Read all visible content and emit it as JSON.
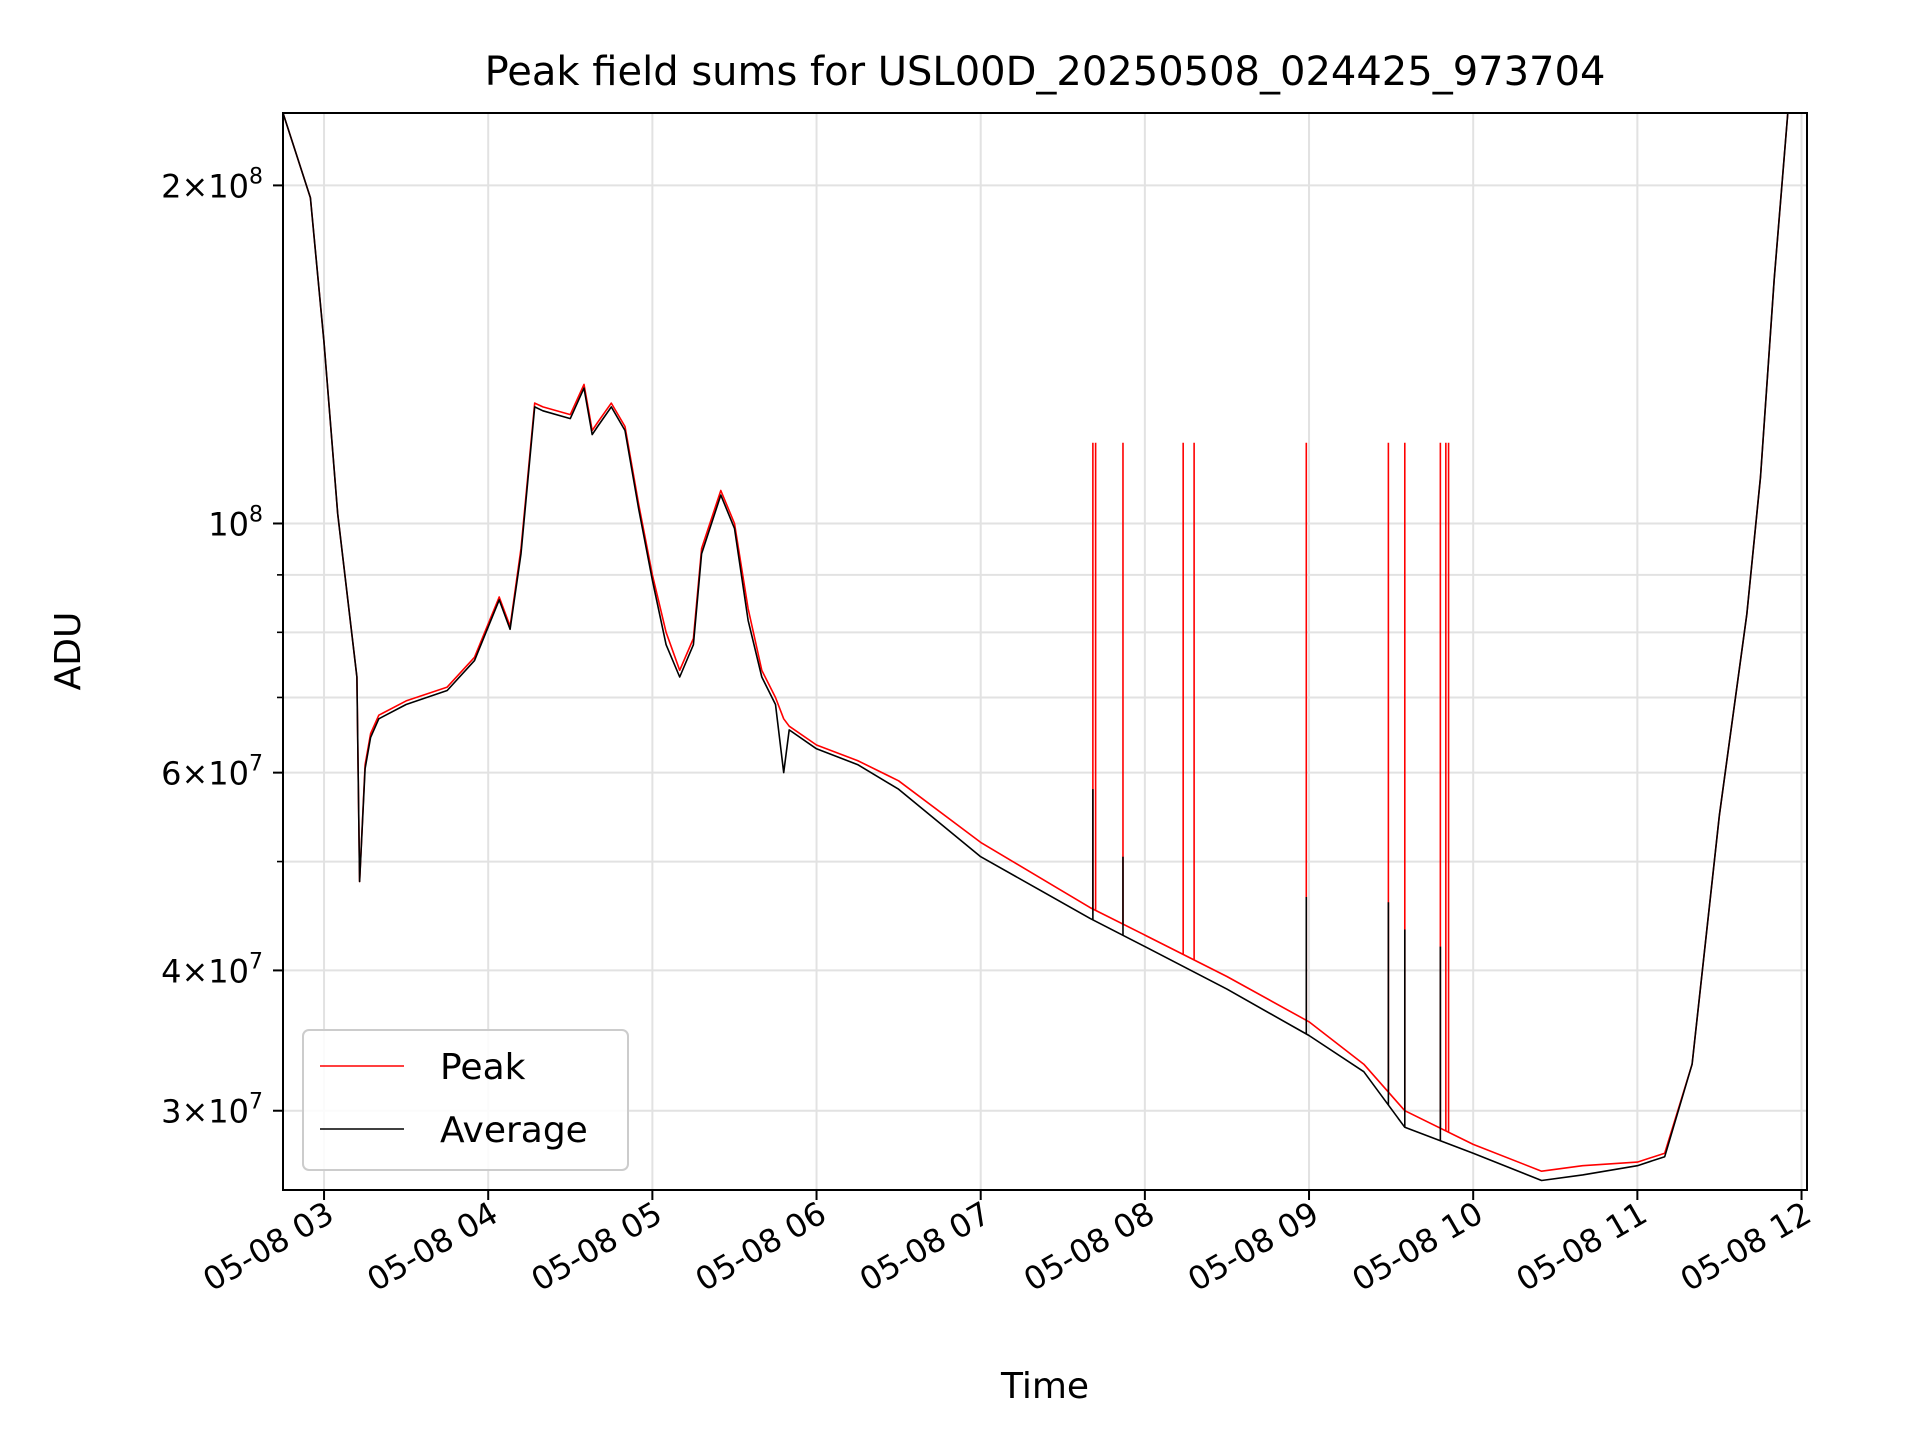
{
  "chart_data": {
    "type": "line",
    "title": "Peak field sums for USL00D_20250508_024425_973704",
    "xlabel": "Time",
    "ylabel": "ADU",
    "y_scale": "log",
    "ylim": [
      25500000,
      232000000
    ],
    "xlim": [
      "05-08 02:45",
      "05-08 12:02"
    ],
    "grid": true,
    "legend_position": "lower-left",
    "x_ticks": [
      "05-08 03",
      "05-08 04",
      "05-08 05",
      "05-08 06",
      "05-08 07",
      "05-08 08",
      "05-08 09",
      "05-08 10",
      "05-08 11",
      "05-08 12"
    ],
    "y_ticks": [
      {
        "value": 30000000,
        "mant": "3",
        "exp": "7"
      },
      {
        "value": 40000000,
        "mant": "4",
        "exp": "7"
      },
      {
        "value": 60000000,
        "mant": "6",
        "exp": "7"
      },
      {
        "value": 100000000,
        "mant": "",
        "exp": "8"
      },
      {
        "value": 200000000,
        "mant": "2",
        "exp": "8"
      }
    ],
    "y_minor_ticks": [
      50000000,
      70000000,
      80000000,
      90000000
    ],
    "series": [
      {
        "name": "Peak",
        "color": "#ff0000",
        "x": [
          "05-08 02:45",
          "05-08 02:55",
          "05-08 03:00",
          "05-08 03:05",
          "05-08 03:12",
          "05-08 03:13",
          "05-08 03:15",
          "05-08 03:17",
          "05-08 03:20",
          "05-08 03:30",
          "05-08 03:45",
          "05-08 03:55",
          "05-08 04:04",
          "05-08 04:08",
          "05-08 04:12",
          "05-08 04:17",
          "05-08 04:20",
          "05-08 04:30",
          "05-08 04:35",
          "05-08 04:38",
          "05-08 04:40",
          "05-08 04:45",
          "05-08 04:50",
          "05-08 04:55",
          "05-08 05:00",
          "05-08 05:05",
          "05-08 05:10",
          "05-08 05:15",
          "05-08 05:18",
          "05-08 05:25",
          "05-08 05:30",
          "05-08 05:35",
          "05-08 05:40",
          "05-08 05:45",
          "05-08 05:48",
          "05-08 05:50",
          "05-08 06:00",
          "05-08 06:15",
          "05-08 06:30",
          "05-08 07:00",
          "05-08 07:40",
          "05-08 08:00",
          "05-08 08:30",
          "05-08 09:00",
          "05-08 09:20",
          "05-08 09:35",
          "05-08 10:00",
          "05-08 10:25",
          "05-08 10:40",
          "05-08 11:00",
          "05-08 11:10",
          "05-08 11:20",
          "05-08 11:30",
          "05-08 11:40",
          "05-08 11:45",
          "05-08 11:50",
          "05-08 11:55",
          "05-08 12:00"
        ],
        "y": [
          232000000,
          195000000,
          145000000,
          102000000,
          73000000,
          48000000,
          61000000,
          65000000,
          67500000,
          69500000,
          71500000,
          76000000,
          86000000,
          81000000,
          95000000,
          128000000,
          127000000,
          125000000,
          133000000,
          121000000,
          123000000,
          128000000,
          122000000,
          104000000,
          90000000,
          80000000,
          74000000,
          79000000,
          95000000,
          107000000,
          100000000,
          84000000,
          74000000,
          70000000,
          67000000,
          66000000,
          63500000,
          61500000,
          59000000,
          52000000,
          45500000,
          43000000,
          39500000,
          36000000,
          33000000,
          30000000,
          28000000,
          26500000,
          26800000,
          27000000,
          27500000,
          33000000,
          55000000,
          83000000,
          110000000,
          165000000,
          232000000,
          232000000
        ],
        "spikes": [
          {
            "x": "05-08 07:41",
            "y": 118000000
          },
          {
            "x": "05-08 07:42",
            "y": 118000000
          },
          {
            "x": "05-08 07:52",
            "y": 118000000
          },
          {
            "x": "05-08 08:14",
            "y": 118000000
          },
          {
            "x": "05-08 08:18",
            "y": 118000000
          },
          {
            "x": "05-08 08:59",
            "y": 118000000
          },
          {
            "x": "05-08 09:29",
            "y": 118000000
          },
          {
            "x": "05-08 09:35",
            "y": 118000000
          },
          {
            "x": "05-08 09:48",
            "y": 118000000
          },
          {
            "x": "05-08 09:50",
            "y": 118000000
          },
          {
            "x": "05-08 09:51",
            "y": 118000000
          }
        ]
      },
      {
        "name": "Average",
        "color": "#000000",
        "x": [
          "05-08 02:45",
          "05-08 02:55",
          "05-08 03:00",
          "05-08 03:05",
          "05-08 03:12",
          "05-08 03:13",
          "05-08 03:15",
          "05-08 03:17",
          "05-08 03:20",
          "05-08 03:30",
          "05-08 03:45",
          "05-08 03:55",
          "05-08 04:04",
          "05-08 04:08",
          "05-08 04:12",
          "05-08 04:17",
          "05-08 04:20",
          "05-08 04:30",
          "05-08 04:35",
          "05-08 04:38",
          "05-08 04:40",
          "05-08 04:45",
          "05-08 04:50",
          "05-08 04:55",
          "05-08 05:00",
          "05-08 05:05",
          "05-08 05:10",
          "05-08 05:15",
          "05-08 05:18",
          "05-08 05:25",
          "05-08 05:30",
          "05-08 05:35",
          "05-08 05:40",
          "05-08 05:45",
          "05-08 05:48",
          "05-08 05:50",
          "05-08 06:00",
          "05-08 06:15",
          "05-08 06:30",
          "05-08 07:00",
          "05-08 07:40",
          "05-08 08:00",
          "05-08 08:30",
          "05-08 09:00",
          "05-08 09:20",
          "05-08 09:35",
          "05-08 10:00",
          "05-08 10:25",
          "05-08 10:40",
          "05-08 11:00",
          "05-08 11:10",
          "05-08 11:20",
          "05-08 11:30",
          "05-08 11:40",
          "05-08 11:45",
          "05-08 11:50",
          "05-08 11:55",
          "05-08 12:00"
        ],
        "y": [
          232000000,
          195000000,
          145000000,
          102000000,
          73000000,
          48000000,
          60500000,
          64500000,
          67000000,
          69000000,
          71000000,
          75500000,
          85500000,
          80500000,
          94000000,
          127000000,
          126000000,
          124000000,
          132000000,
          120000000,
          122000000,
          127000000,
          121000000,
          103000000,
          89000000,
          78000000,
          73000000,
          78000000,
          94000000,
          106000000,
          99000000,
          82000000,
          73000000,
          69000000,
          60000000,
          65500000,
          63000000,
          61000000,
          58000000,
          50500000,
          44500000,
          42000000,
          38500000,
          35000000,
          32500000,
          29000000,
          27500000,
          26000000,
          26300000,
          26800000,
          27300000,
          33000000,
          55000000,
          83000000,
          110000000,
          165000000,
          232000000,
          232000000
        ],
        "spikes": [
          {
            "x": "05-08 07:41",
            "y": 58000000
          },
          {
            "x": "05-08 07:52",
            "y": 50500000
          },
          {
            "x": "05-08 08:59",
            "y": 46500000
          },
          {
            "x": "05-08 09:29",
            "y": 46000000
          },
          {
            "x": "05-08 09:35",
            "y": 43500000
          },
          {
            "x": "05-08 09:48",
            "y": 42000000
          }
        ]
      }
    ]
  }
}
